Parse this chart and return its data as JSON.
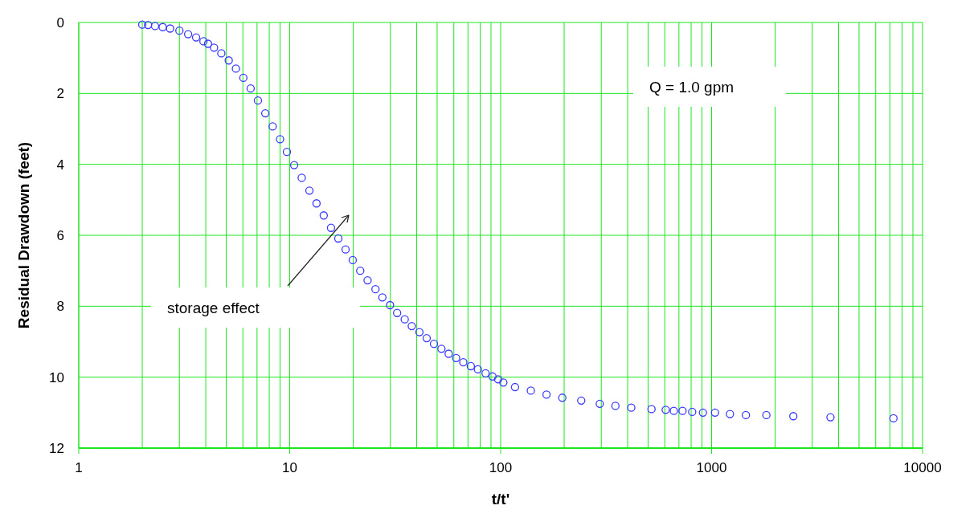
{
  "chart_data": {
    "type": "scatter",
    "xlabel": "t/t'",
    "ylabel": "Residual Drawdown (feet)",
    "log": "x",
    "grid": true,
    "marker": "circle",
    "xlim": [
      1,
      10000
    ],
    "xticks": [
      1,
      10,
      100,
      1000,
      10000
    ],
    "ylim": [
      12,
      0
    ],
    "yticks": [
      0,
      2,
      4,
      6,
      8,
      10,
      12
    ],
    "annotations": [
      "Q = 1.0 gpm",
      "storage effect"
    ],
    "series": [
      {
        "color": "#3a3aff",
        "x": [
          2.0,
          2.13,
          2.3,
          2.5,
          2.71,
          3.0,
          3.3,
          3.6,
          3.9,
          4.1,
          4.38,
          4.74,
          5.14,
          5.56,
          6.03,
          6.53,
          7.07,
          7.66,
          8.3,
          9.0,
          9.7,
          10.5,
          11.4,
          12.4,
          13.4,
          14.5,
          15.7,
          17.0,
          18.4,
          19.9,
          21.6,
          23.4,
          25.5,
          27.5,
          29.9,
          32.3,
          35.1,
          37.9,
          41.2,
          44.6,
          48.3,
          52.4,
          56.7,
          61.5,
          66.5,
          72.2,
          78,
          84.8,
          91.5,
          97.3,
          103,
          117,
          139,
          165,
          196,
          241,
          295,
          350,
          416,
          519,
          606,
          662,
          728,
          809,
          910,
          1038,
          1222,
          1454,
          1819,
          2440,
          3660,
          7280
        ],
        "values": [
          0.06,
          0.07,
          0.1,
          0.13,
          0.17,
          0.23,
          0.33,
          0.42,
          0.53,
          0.6,
          0.71,
          0.87,
          1.07,
          1.3,
          1.56,
          1.86,
          2.2,
          2.56,
          2.93,
          3.29,
          3.65,
          4.02,
          4.38,
          4.74,
          5.1,
          5.44,
          5.79,
          6.09,
          6.4,
          6.7,
          7.0,
          7.27,
          7.52,
          7.75,
          7.97,
          8.19,
          8.37,
          8.56,
          8.73,
          8.9,
          9.06,
          9.2,
          9.34,
          9.46,
          9.58,
          9.69,
          9.78,
          9.89,
          9.98,
          10.06,
          10.15,
          10.28,
          10.38,
          10.49,
          10.58,
          10.66,
          10.75,
          10.81,
          10.86,
          10.9,
          10.92,
          10.95,
          10.95,
          10.98,
          11.0,
          11.0,
          11.04,
          11.07,
          11.07,
          11.1,
          11.13,
          11.16
        ]
      }
    ]
  }
}
